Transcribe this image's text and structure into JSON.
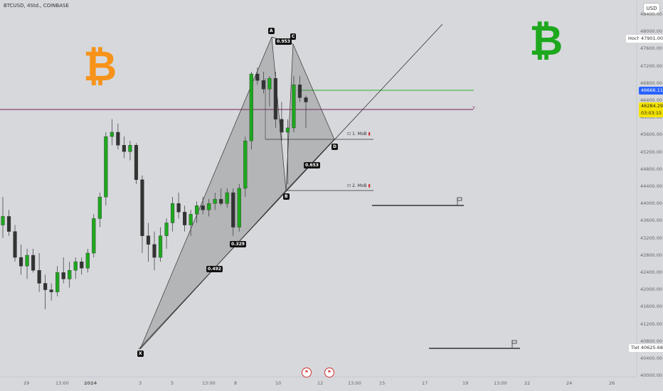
{
  "header": {
    "title": "BTCUSD, 4Std., COINBASE",
    "currency_button": "USD"
  },
  "price_axis": {
    "ticks": [
      "48400.00",
      "48000.00",
      "47600.00",
      "47200.00",
      "46800.00",
      "46400.00",
      "46000.00",
      "45600.00",
      "45200.00",
      "44800.00",
      "44400.00",
      "44000.00",
      "43600.00",
      "43200.00",
      "42800.00",
      "42400.00",
      "42000.00",
      "41600.00",
      "41200.00",
      "40800.00",
      "40400.00",
      "40000.00"
    ],
    "high_label": "Hoch",
    "high_value": "47901.00",
    "low_label": "Tief",
    "low_value": "40625.68",
    "level_value": "46666.11",
    "last_price": "46284.29",
    "countdown": "03:03:15",
    "colors": {
      "level": "#2962ff",
      "last": "#f5e400"
    }
  },
  "time_axis": {
    "ticks": [
      "29",
      "13:00",
      "2024",
      "3",
      "5",
      "13:00",
      "8",
      "10",
      "12",
      "13:00",
      "15",
      "17",
      "19",
      "13:00",
      "22",
      "24",
      "26"
    ]
  },
  "pattern": {
    "points": {
      "X": "X",
      "A": "A",
      "B": "B",
      "C": "C",
      "D": "D"
    },
    "ratios": {
      "xa_b": "0.329",
      "xa_b2": "0.492",
      "ac": "0.953",
      "bd": "0.653"
    },
    "mob1": "1. MoB",
    "mob2": "2. MoB"
  },
  "logos": {
    "left_symbol": "₿",
    "right_symbol": "₿",
    "left_color": "#f7931a",
    "right_color": "#1ea81e"
  },
  "chart_data": {
    "type": "candlestick",
    "y_unit": "USD",
    "ylim": [
      40000,
      48400
    ],
    "candles": [
      {
        "o": 43450,
        "h": 44100,
        "l": 43150,
        "c": 43650
      },
      {
        "o": 43650,
        "h": 43800,
        "l": 43200,
        "c": 43300
      },
      {
        "o": 43300,
        "h": 43450,
        "l": 42600,
        "c": 42700
      },
      {
        "o": 42700,
        "h": 43000,
        "l": 42300,
        "c": 42500
      },
      {
        "o": 42500,
        "h": 42900,
        "l": 42200,
        "c": 42750
      },
      {
        "o": 42750,
        "h": 42900,
        "l": 42350,
        "c": 42400
      },
      {
        "o": 42400,
        "h": 42800,
        "l": 41900,
        "c": 42100
      },
      {
        "o": 42100,
        "h": 42300,
        "l": 41500,
        "c": 41950
      },
      {
        "o": 41950,
        "h": 42100,
        "l": 41700,
        "c": 41900
      },
      {
        "o": 41900,
        "h": 42500,
        "l": 41800,
        "c": 42350
      },
      {
        "o": 42350,
        "h": 42700,
        "l": 42100,
        "c": 42200
      },
      {
        "o": 42200,
        "h": 42600,
        "l": 42000,
        "c": 42400
      },
      {
        "o": 42400,
        "h": 42700,
        "l": 42200,
        "c": 42600
      },
      {
        "o": 42600,
        "h": 42700,
        "l": 42300,
        "c": 42450
      },
      {
        "o": 42450,
        "h": 42900,
        "l": 42350,
        "c": 42800
      },
      {
        "o": 42800,
        "h": 43700,
        "l": 42700,
        "c": 43600
      },
      {
        "o": 43600,
        "h": 44200,
        "l": 43400,
        "c": 44100
      },
      {
        "o": 44100,
        "h": 45600,
        "l": 43900,
        "c": 45500
      },
      {
        "o": 45500,
        "h": 45900,
        "l": 45300,
        "c": 45600
      },
      {
        "o": 45600,
        "h": 45800,
        "l": 45200,
        "c": 45300
      },
      {
        "o": 45300,
        "h": 45500,
        "l": 45000,
        "c": 45150
      },
      {
        "o": 45150,
        "h": 45400,
        "l": 44950,
        "c": 45300
      },
      {
        "o": 45300,
        "h": 45350,
        "l": 44400,
        "c": 44500
      },
      {
        "o": 44500,
        "h": 44600,
        "l": 42800,
        "c": 43200
      },
      {
        "o": 43200,
        "h": 43500,
        "l": 42600,
        "c": 43000
      },
      {
        "o": 43000,
        "h": 43300,
        "l": 42400,
        "c": 42700
      },
      {
        "o": 42700,
        "h": 43400,
        "l": 42600,
        "c": 43200
      },
      {
        "o": 43200,
        "h": 43600,
        "l": 42900,
        "c": 43500
      },
      {
        "o": 43500,
        "h": 44100,
        "l": 43300,
        "c": 43950
      },
      {
        "o": 43950,
        "h": 44200,
        "l": 43600,
        "c": 43750
      },
      {
        "o": 43750,
        "h": 43900,
        "l": 43300,
        "c": 43450
      },
      {
        "o": 43450,
        "h": 43800,
        "l": 43200,
        "c": 43700
      },
      {
        "o": 43700,
        "h": 44000,
        "l": 43500,
        "c": 43900
      },
      {
        "o": 43900,
        "h": 44100,
        "l": 43700,
        "c": 43800
      },
      {
        "o": 43800,
        "h": 44050,
        "l": 43650,
        "c": 43950
      },
      {
        "o": 43950,
        "h": 44200,
        "l": 43800,
        "c": 44050
      },
      {
        "o": 44050,
        "h": 44300,
        "l": 43900,
        "c": 43950
      },
      {
        "o": 43950,
        "h": 44300,
        "l": 43850,
        "c": 44200
      },
      {
        "o": 44200,
        "h": 44300,
        "l": 43200,
        "c": 43400
      },
      {
        "o": 43400,
        "h": 44400,
        "l": 43300,
        "c": 44300
      },
      {
        "o": 44300,
        "h": 45500,
        "l": 44100,
        "c": 45400
      },
      {
        "o": 45400,
        "h": 47000,
        "l": 45200,
        "c": 46950
      },
      {
        "o": 46950,
        "h": 47100,
        "l": 46700,
        "c": 46800
      },
      {
        "o": 46800,
        "h": 47000,
        "l": 46500,
        "c": 46600
      },
      {
        "o": 46600,
        "h": 46900,
        "l": 46200,
        "c": 46850
      },
      {
        "o": 46850,
        "h": 47000,
        "l": 45700,
        "c": 45900
      },
      {
        "o": 45900,
        "h": 46300,
        "l": 45400,
        "c": 45600
      },
      {
        "o": 45600,
        "h": 45900,
        "l": 44400,
        "c": 45700
      },
      {
        "o": 45700,
        "h": 46900,
        "l": 45600,
        "c": 46700
      },
      {
        "o": 46700,
        "h": 46900,
        "l": 46300,
        "c": 46400
      },
      {
        "o": 46400,
        "h": 46450,
        "l": 45700,
        "c": 46300
      }
    ]
  }
}
